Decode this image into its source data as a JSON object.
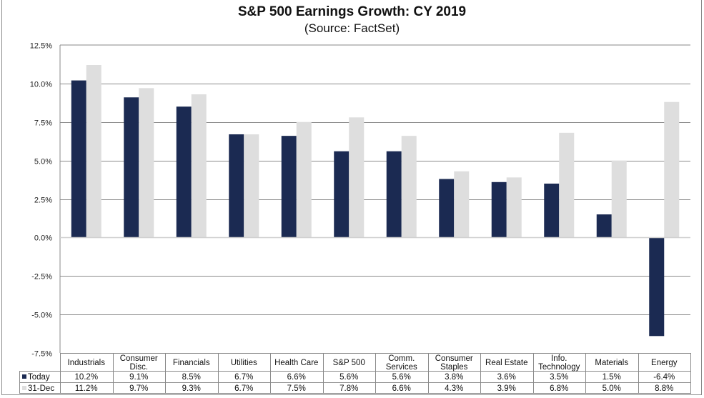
{
  "chart_data": {
    "type": "bar",
    "title": "S&P 500 Earnings Growth: CY 2019",
    "subtitle": "(Source: FactSet)",
    "xlabel": "",
    "ylabel": "",
    "ylim": [
      -7.5,
      12.5
    ],
    "yticks": [
      12.5,
      10.0,
      7.5,
      5.0,
      2.5,
      0.0,
      -2.5,
      -5.0,
      -7.5
    ],
    "ytick_labels": [
      "12.5%",
      "10.0%",
      "7.5%",
      "5.0%",
      "2.5%",
      "0.0%",
      "-2.5%",
      "-5.0%",
      "-7.5%"
    ],
    "grid": true,
    "legend_placement": "data-table-bottom-left",
    "categories": [
      [
        "Industrials"
      ],
      [
        "Consumer",
        "Disc."
      ],
      [
        "Financials"
      ],
      [
        "Utilities"
      ],
      [
        "Health Care"
      ],
      [
        "S&P 500"
      ],
      [
        "Comm.",
        "Services"
      ],
      [
        "Consumer",
        "Staples"
      ],
      [
        "Real Estate"
      ],
      [
        "Info.",
        "Technology"
      ],
      [
        "Materials"
      ],
      [
        "Energy"
      ]
    ],
    "series": [
      {
        "name": "Today",
        "color": "#1b2a52",
        "values": [
          10.2,
          9.1,
          8.5,
          6.7,
          6.6,
          5.6,
          5.6,
          3.8,
          3.6,
          3.5,
          1.5,
          -6.4
        ],
        "labels": [
          "10.2%",
          "9.1%",
          "8.5%",
          "6.7%",
          "6.6%",
          "5.6%",
          "5.6%",
          "3.8%",
          "3.6%",
          "3.5%",
          "1.5%",
          "-6.4%"
        ]
      },
      {
        "name": "31-Dec",
        "color": "#dedede",
        "values": [
          11.2,
          9.7,
          9.3,
          6.7,
          7.5,
          7.8,
          6.6,
          4.3,
          3.9,
          6.8,
          5.0,
          8.8
        ],
        "labels": [
          "11.2%",
          "9.7%",
          "9.3%",
          "6.7%",
          "7.5%",
          "7.8%",
          "6.6%",
          "4.3%",
          "3.9%",
          "6.8%",
          "5.0%",
          "8.8%"
        ]
      }
    ]
  }
}
